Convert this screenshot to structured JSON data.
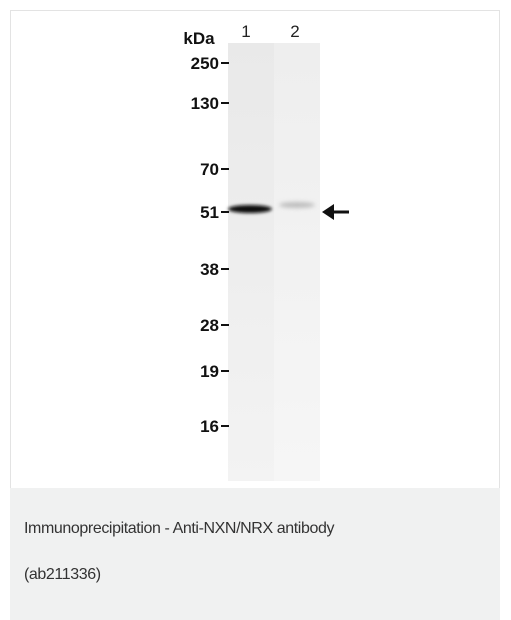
{
  "figure": {
    "unit_label": "kDa",
    "lanes": [
      "1",
      "2"
    ],
    "markers": [
      "250",
      "130",
      "70",
      "51",
      "38",
      "28",
      "19",
      "16"
    ]
  },
  "caption": {
    "lines": [
      "Immunoprecipitation - Anti-NXN/NRX antibody",
      "(ab211336)"
    ]
  }
}
